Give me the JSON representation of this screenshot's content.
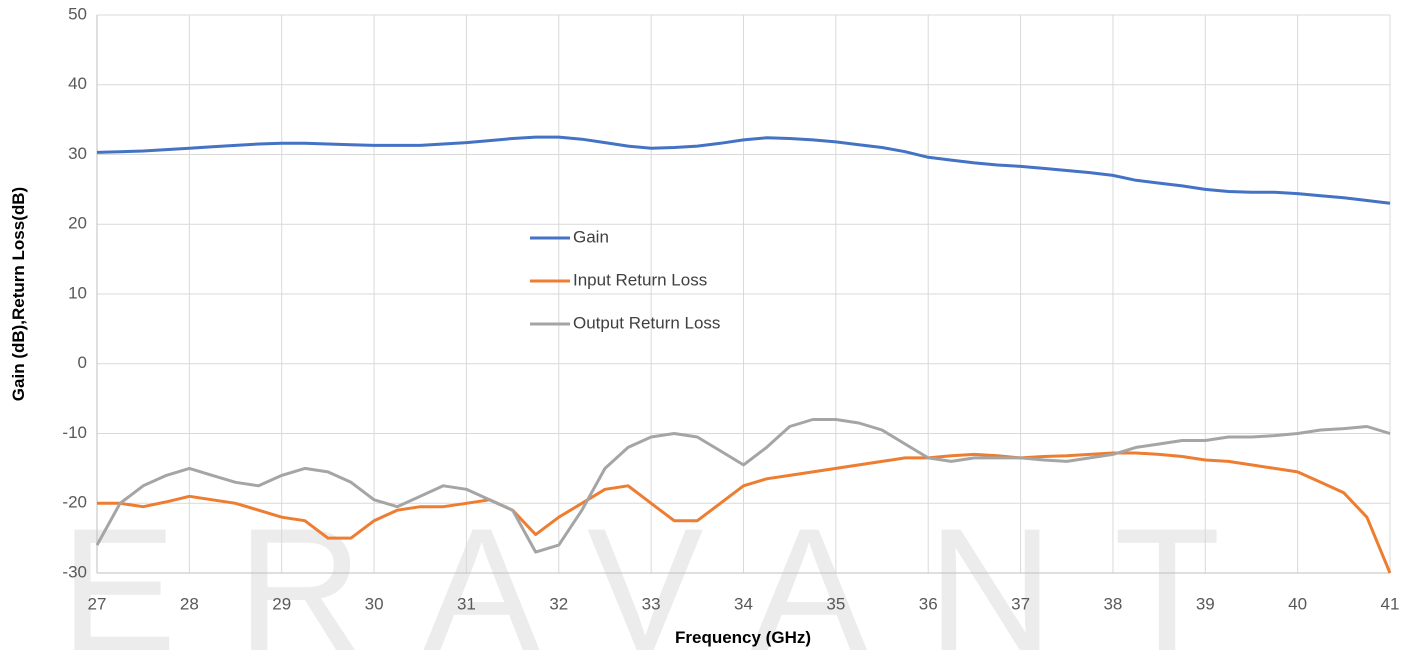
{
  "chart_data": {
    "type": "line",
    "watermark": "ERAVANT",
    "x_label": "Frequency (GHz)",
    "y_label": "Gain (dB),Return Loss(dB)",
    "x": [
      27,
      27.25,
      27.5,
      27.75,
      28,
      28.25,
      28.5,
      28.75,
      29,
      29.25,
      29.5,
      29.75,
      30,
      30.25,
      30.5,
      30.75,
      31,
      31.25,
      31.5,
      31.75,
      32,
      32.25,
      32.5,
      32.75,
      33,
      33.25,
      33.5,
      33.75,
      34,
      34.25,
      34.5,
      34.75,
      35,
      35.25,
      35.5,
      35.75,
      36,
      36.25,
      36.5,
      36.75,
      37,
      37.25,
      37.5,
      37.75,
      38,
      38.25,
      38.5,
      38.75,
      39,
      39.25,
      39.5,
      39.75,
      40,
      40.25,
      40.5,
      40.75,
      41
    ],
    "series": [
      {
        "name": "Gain",
        "color": "#4472c4",
        "values": [
          30.3,
          30.4,
          30.5,
          30.7,
          30.9,
          31.1,
          31.3,
          31.5,
          31.6,
          31.6,
          31.5,
          31.4,
          31.3,
          31.3,
          31.3,
          31.5,
          31.7,
          32.0,
          32.3,
          32.5,
          32.5,
          32.2,
          31.7,
          31.2,
          30.9,
          31.0,
          31.2,
          31.6,
          32.1,
          32.4,
          32.3,
          32.1,
          31.8,
          31.4,
          31.0,
          30.4,
          29.6,
          29.2,
          28.8,
          28.5,
          28.3,
          28.0,
          27.7,
          27.4,
          27.0,
          26.3,
          25.9,
          25.5,
          25.0,
          24.7,
          24.6,
          24.6,
          24.4,
          24.1,
          23.8,
          23.4,
          23.0
        ]
      },
      {
        "name": "Input Return Loss",
        "color": "#ed7d31",
        "values": [
          -20,
          -20,
          -20.5,
          -19.8,
          -19,
          -19.5,
          -20,
          -21,
          -22,
          -22.5,
          -25,
          -25,
          -22.5,
          -21,
          -20.5,
          -20.5,
          -20,
          -19.5,
          -21,
          -24.5,
          -22,
          -20,
          -18,
          -17.5,
          -20,
          -22.5,
          -22.5,
          -20,
          -17.5,
          -16.5,
          -16,
          -15.5,
          -15,
          -14.5,
          -14,
          -13.5,
          -13.5,
          -13.2,
          -13,
          -13.2,
          -13.5,
          -13.3,
          -13.2,
          -13,
          -12.8,
          -12.8,
          -13,
          -13.3,
          -13.8,
          -14,
          -14.5,
          -15,
          -15.5,
          -17,
          -18.5,
          -22,
          -30
        ]
      },
      {
        "name": "Output Return Loss",
        "color": "#a5a5a5",
        "values": [
          -26,
          -20,
          -17.5,
          -16,
          -15,
          -16,
          -17,
          -17.5,
          -16,
          -15,
          -15.5,
          -17,
          -19.5,
          -20.5,
          -19,
          -17.5,
          -18,
          -19.5,
          -21,
          -27,
          -26,
          -21,
          -15,
          -12,
          -10.5,
          -10,
          -10.5,
          -12.5,
          -14.5,
          -12,
          -9,
          -8,
          -8,
          -8.5,
          -9.5,
          -11.5,
          -13.5,
          -14,
          -13.5,
          -13.5,
          -13.5,
          -13.8,
          -14,
          -13.5,
          -13,
          -12,
          -11.5,
          -11,
          -11,
          -10.5,
          -10.5,
          -10.3,
          -10,
          -9.5,
          -9.3,
          -9,
          -10
        ]
      }
    ],
    "xlim": [
      27,
      41
    ],
    "xticks": [
      27,
      28,
      29,
      30,
      31,
      32,
      33,
      34,
      35,
      36,
      37,
      38,
      39,
      40,
      41
    ],
    "ylim": [
      -30,
      50
    ],
    "yticks": [
      -30,
      -20,
      -10,
      0,
      10,
      20,
      30,
      40,
      50
    ],
    "grid": true
  }
}
